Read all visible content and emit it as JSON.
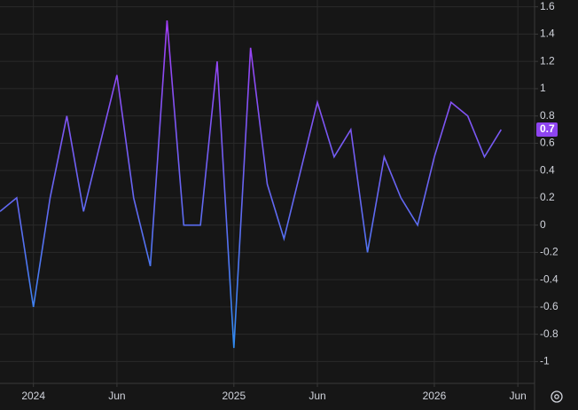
{
  "chart_data": {
    "type": "line",
    "x": [
      "2023-11",
      "2023-12",
      "2024-01",
      "2024-02",
      "2024-03",
      "2024-04",
      "2024-05",
      "2024-06",
      "2024-07",
      "2024-08",
      "2024-09",
      "2024-10",
      "2024-11",
      "2024-12",
      "2025-01",
      "2025-02",
      "2025-03",
      "2025-04",
      "2025-05",
      "2025-06",
      "2025-07",
      "2025-08",
      "2025-09",
      "2025-10",
      "2025-11",
      "2025-12",
      "2026-01",
      "2026-02",
      "2026-03",
      "2026-04",
      "2026-05"
    ],
    "series": [
      {
        "color": "#8e44f0",
        "gradient": [
          "#a23cf5",
          "#2e8cf0"
        ],
        "values": [
          0.1,
          0.2,
          -0.6,
          0.2,
          0.8,
          0.1,
          0.6,
          1.1,
          0.2,
          -0.3,
          1.5,
          0,
          0,
          1.2,
          -0.9,
          1.3,
          0.3,
          -0.1,
          0.4,
          0.9,
          0.5,
          0.7,
          -0.2,
          0.5,
          0.2,
          0,
          0.5,
          0.9,
          0.8,
          0.5,
          0.7
        ]
      }
    ],
    "xlim": [
      "2023-11",
      "2026-07"
    ],
    "xticks": [
      {
        "value": "2024-01",
        "label": "2024"
      },
      {
        "value": "2024-06",
        "label": "Jun"
      },
      {
        "value": "2025-01",
        "label": "2025"
      },
      {
        "value": "2025-06",
        "label": "Jun"
      },
      {
        "value": "2026-01",
        "label": "2026"
      },
      {
        "value": "2026-06",
        "label": "Jun"
      }
    ],
    "ylim": [
      -1.16,
      1.65
    ],
    "yticks": [
      1.6,
      1.4,
      1.2,
      1,
      0.8,
      0.6,
      0.4,
      0.2,
      0,
      -0.2,
      -0.4,
      -0.6,
      -0.8,
      -1
    ],
    "grid": true
  }
}
